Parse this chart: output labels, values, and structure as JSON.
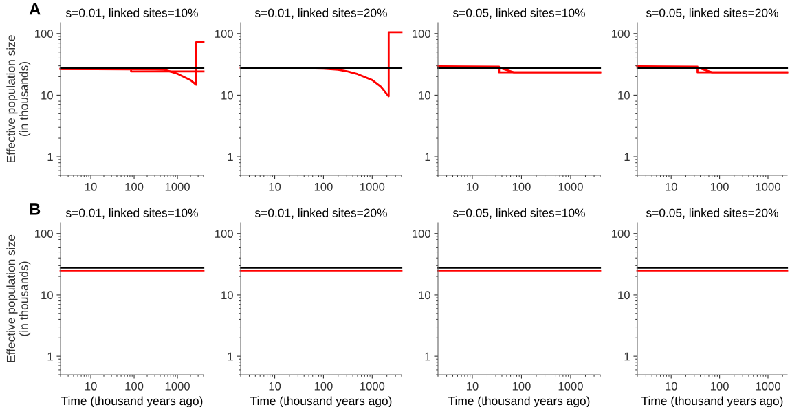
{
  "chart_data": [
    {
      "type": "line",
      "title": "s=0.01, linked sites=10%",
      "ylabel": "Effective population size\n(in thousands)",
      "annotations": [
        "A"
      ],
      "log": "xy",
      "xlim": [
        2,
        4000
      ],
      "ylim": [
        0.5,
        150
      ],
      "xticks": [
        10,
        100,
        1000
      ],
      "yticks": [
        1,
        10,
        100
      ],
      "series": [
        {
          "color": "#ff0000",
          "x": [
            2,
            85,
            85,
            4000
          ],
          "values": [
            26.5,
            26.3,
            24.3,
            24.3
          ]
        },
        {
          "color": "#ff0000",
          "x": [
            2,
            100,
            300,
            500,
            1000,
            2000,
            2700,
            2700,
            4000
          ],
          "values": [
            26.8,
            26.4,
            26.2,
            25.9,
            22.3,
            17.6,
            14.8,
            72.5,
            72.5
          ]
        },
        {
          "color": "#000000",
          "x": [
            2,
            4000
          ],
          "values": [
            27.5,
            27.5
          ]
        }
      ]
    },
    {
      "type": "line",
      "title": "s=0.01, linked sites=20%",
      "log": "xy",
      "xlim": [
        2,
        4000
      ],
      "ylim": [
        0.5,
        150
      ],
      "xticks": [
        10,
        100,
        1000
      ],
      "yticks": [
        1,
        10,
        100
      ],
      "series": [
        {
          "color": "#ff0000",
          "x": [
            2,
            30,
            100,
            200,
            300,
            500,
            1000,
            1500,
            2000,
            2180,
            2180,
            4000
          ],
          "values": [
            28,
            27.5,
            26.9,
            25.9,
            24.5,
            22,
            17.6,
            13.8,
            10.4,
            9.6,
            105,
            105
          ]
        },
        {
          "color": "#000000",
          "x": [
            2,
            4000
          ],
          "values": [
            27.5,
            27.5
          ]
        }
      ]
    },
    {
      "type": "line",
      "title": "s=0.05, linked sites=10%",
      "log": "xy",
      "xlim": [
        2,
        4000
      ],
      "ylim": [
        0.5,
        150
      ],
      "xticks": [
        10,
        100,
        1000
      ],
      "yticks": [
        1,
        10,
        100
      ],
      "series": [
        {
          "color": "#ff0000",
          "x": [
            2,
            35,
            35,
            4000
          ],
          "values": [
            29.5,
            29,
            23.5,
            23.5
          ]
        },
        {
          "color": "#ff0000",
          "x": [
            2,
            35,
            70,
            4000
          ],
          "values": [
            29,
            28,
            23.5,
            23.5
          ]
        },
        {
          "color": "#000000",
          "x": [
            2,
            4000
          ],
          "values": [
            27.5,
            27.5
          ]
        }
      ]
    },
    {
      "type": "line",
      "title": "s=0.05, linked sites=20%",
      "log": "xy",
      "xlim": [
        2,
        2500
      ],
      "ylim": [
        0.5,
        150
      ],
      "xticks": [
        10,
        100,
        1000
      ],
      "yticks": [
        1,
        10,
        100
      ],
      "series": [
        {
          "color": "#ff0000",
          "x": [
            2,
            35,
            35,
            2500
          ],
          "values": [
            29.5,
            29,
            23.5,
            23.5
          ]
        },
        {
          "color": "#ff0000",
          "x": [
            2,
            35,
            70,
            2500
          ],
          "values": [
            29,
            28,
            23.5,
            23.5
          ]
        },
        {
          "color": "#000000",
          "x": [
            2,
            2500
          ],
          "values": [
            27.5,
            27.5
          ]
        }
      ]
    },
    {
      "type": "line",
      "title": "s=0.01, linked sites=10%",
      "xlabel": "Time (thousand years ago)",
      "ylabel": "Effective population size\n(in thousands)",
      "annotations": [
        "B"
      ],
      "log": "xy",
      "xlim": [
        2,
        4000
      ],
      "ylim": [
        0.5,
        150
      ],
      "xticks": [
        10,
        100,
        1000
      ],
      "yticks": [
        1,
        10,
        100
      ],
      "series": [
        {
          "color": "#ff0000",
          "x": [
            2,
            4000
          ],
          "values": [
            25,
            25
          ]
        },
        {
          "color": "#000000",
          "x": [
            2,
            4000
          ],
          "values": [
            27.5,
            27.5
          ]
        }
      ]
    },
    {
      "type": "line",
      "title": "s=0.01, linked sites=20%",
      "xlabel": "Time (thousand years ago)",
      "log": "xy",
      "xlim": [
        2,
        4000
      ],
      "ylim": [
        0.5,
        150
      ],
      "xticks": [
        10,
        100,
        1000
      ],
      "yticks": [
        1,
        10,
        100
      ],
      "series": [
        {
          "color": "#ff0000",
          "x": [
            2,
            4000
          ],
          "values": [
            25,
            25
          ]
        },
        {
          "color": "#000000",
          "x": [
            2,
            4000
          ],
          "values": [
            27.5,
            27.5
          ]
        }
      ]
    },
    {
      "type": "line",
      "title": "s=0.05, linked sites=10%",
      "xlabel": "Time (thousand years ago)",
      "log": "xy",
      "xlim": [
        2,
        4000
      ],
      "ylim": [
        0.5,
        150
      ],
      "xticks": [
        10,
        100,
        1000
      ],
      "yticks": [
        1,
        10,
        100
      ],
      "series": [
        {
          "color": "#ff0000",
          "x": [
            2,
            4000
          ],
          "values": [
            25,
            25
          ]
        },
        {
          "color": "#000000",
          "x": [
            2,
            4000
          ],
          "values": [
            27.5,
            27.5
          ]
        }
      ]
    },
    {
      "type": "line",
      "title": "s=0.05, linked sites=20%",
      "xlabel": "Time (thousand years ago)",
      "log": "xy",
      "xlim": [
        2,
        2500
      ],
      "ylim": [
        0.5,
        150
      ],
      "xticks": [
        10,
        100,
        1000
      ],
      "yticks": [
        1,
        10,
        100
      ],
      "series": [
        {
          "color": "#ff0000",
          "x": [
            2,
            2500
          ],
          "values": [
            25,
            25
          ]
        },
        {
          "color": "#000000",
          "x": [
            2,
            2500
          ],
          "values": [
            27.5,
            27.5
          ]
        }
      ]
    }
  ]
}
